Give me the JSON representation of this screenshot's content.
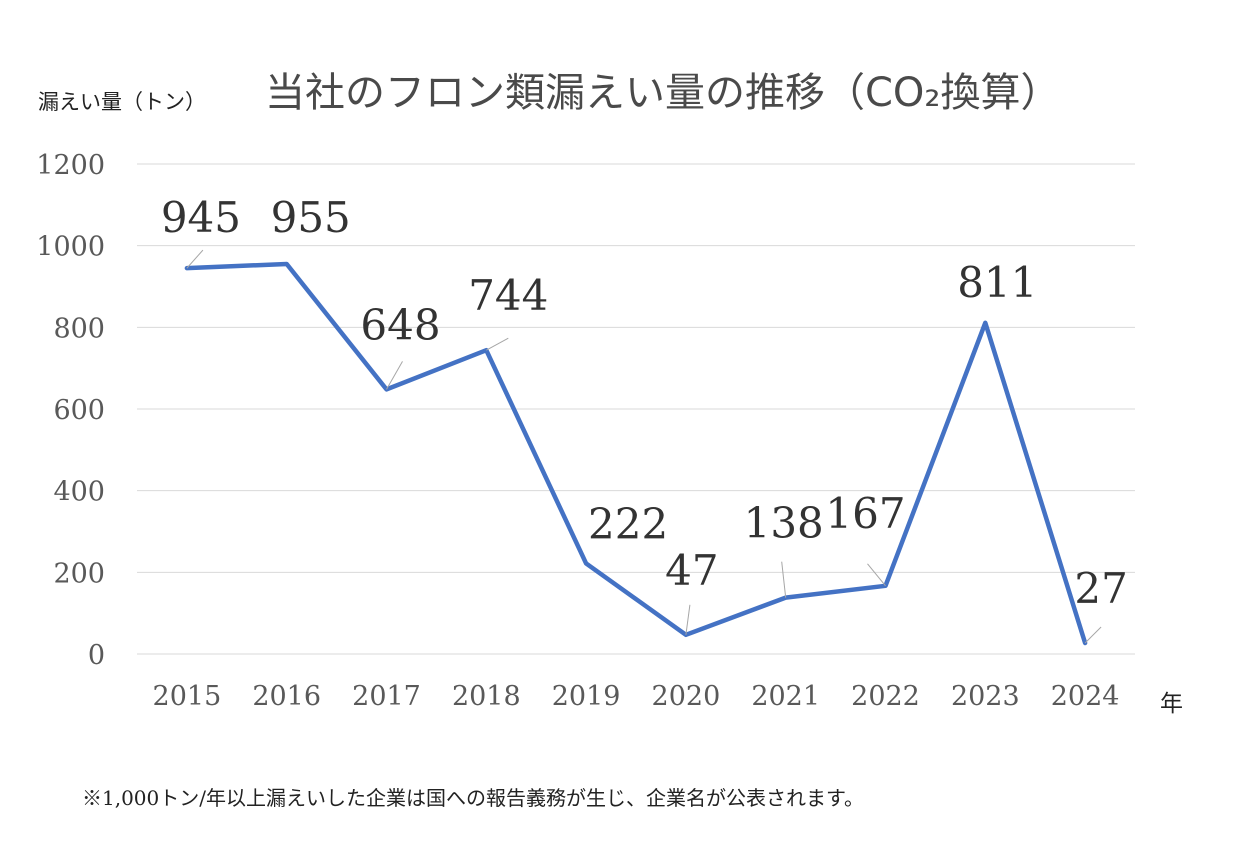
{
  "chart_data": {
    "type": "line",
    "title": "当社のフロン類漏えい量の推移（CO₂換算）",
    "ylabel": "漏えい量（トン）",
    "xlabel": "年",
    "categories": [
      "2015",
      "2016",
      "2017",
      "2018",
      "2019",
      "2020",
      "2021",
      "2022",
      "2023",
      "2024"
    ],
    "series": [
      {
        "values": [
          945,
          955,
          648,
          744,
          222,
          47,
          138,
          167,
          811,
          27
        ]
      }
    ],
    "data_labels": [
      "945",
      "955",
      "648",
      "744",
      "222",
      "47",
      "138",
      "167",
      "811",
      "27"
    ],
    "ylim": [
      0,
      1200
    ],
    "yticks": [
      0,
      200,
      400,
      600,
      800,
      1000,
      1200
    ],
    "ytick_labels": [
      "0",
      "200",
      "400",
      "600",
      "800",
      "1000",
      "1200"
    ],
    "grid": true,
    "legend": "none",
    "colors": {
      "line": "#4472C4",
      "grid": "#d9d9d9",
      "tick_text": "#595959",
      "data_label": "#333333",
      "leader": "#a6a6a6"
    }
  },
  "footnote": "※1,000トン/年以上漏えいした企業は国への報告義務が生じ、企業名が公表されます。"
}
